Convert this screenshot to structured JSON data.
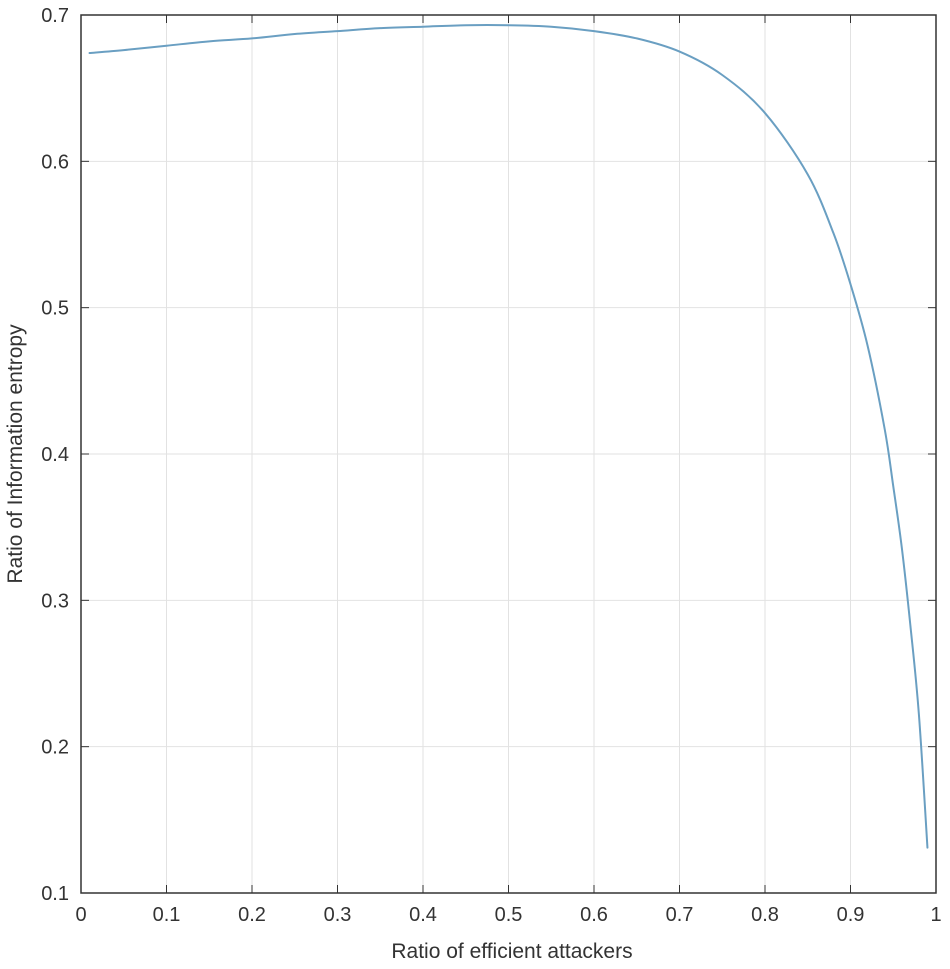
{
  "chart_data": {
    "type": "line",
    "title": "",
    "xlabel": "Ratio of efficient attackers",
    "ylabel": "Ratio of Information entropy",
    "xlim": [
      0,
      1
    ],
    "ylim": [
      0.1,
      0.7
    ],
    "xticks": [
      0,
      0.1,
      0.2,
      0.3,
      0.4,
      0.5,
      0.6,
      0.7,
      0.8,
      0.9,
      1
    ],
    "yticks": [
      0.1,
      0.2,
      0.3,
      0.4,
      0.5,
      0.6,
      0.7
    ],
    "xtick_labels": [
      "0",
      "0.1",
      "0.2",
      "0.3",
      "0.4",
      "0.5",
      "0.6",
      "0.7",
      "0.8",
      "0.9",
      "1"
    ],
    "ytick_labels": [
      "0.1",
      "0.2",
      "0.3",
      "0.4",
      "0.5",
      "0.6",
      "0.7"
    ],
    "grid": true,
    "colors": {
      "line": "#6a9fc2",
      "grid": "#e2e2e2",
      "axis": "#333333"
    },
    "series": [
      {
        "x": [
          0.01,
          0.05,
          0.1,
          0.15,
          0.2,
          0.25,
          0.3,
          0.35,
          0.4,
          0.45,
          0.5,
          0.55,
          0.6,
          0.65,
          0.7,
          0.75,
          0.8,
          0.85,
          0.88,
          0.9,
          0.92,
          0.94,
          0.95,
          0.96,
          0.97,
          0.98,
          0.99
        ],
        "y": [
          0.674,
          0.676,
          0.679,
          0.682,
          0.684,
          0.687,
          0.689,
          0.691,
          0.692,
          0.693,
          0.693,
          0.692,
          0.689,
          0.684,
          0.675,
          0.659,
          0.633,
          0.591,
          0.551,
          0.516,
          0.474,
          0.417,
          0.378,
          0.336,
          0.283,
          0.222,
          0.131
        ]
      }
    ]
  }
}
